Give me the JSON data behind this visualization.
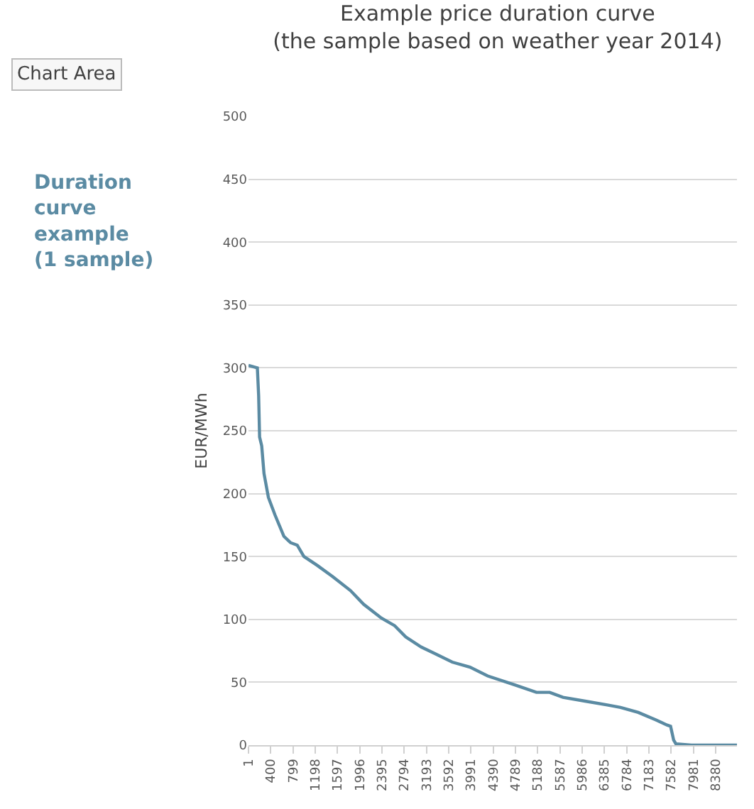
{
  "chart_data": {
    "type": "line",
    "title": "Example price duration curve\n(the sample based on weather year 2014)",
    "ylabel": "EUR/MWh",
    "annotations": [
      "Chart Area",
      "Duration\ncurve\nexample\n(1 sample)"
    ],
    "x": [
      1,
      160,
      183,
      200,
      238,
      279,
      358,
      477,
      636,
      755,
      875,
      994,
      1232,
      1510,
      1828,
      2066,
      2384,
      2622,
      2821,
      3099,
      3337,
      3655,
      3972,
      4290,
      4767,
      5164,
      5402,
      5640,
      6037,
      6434,
      6672,
      6990,
      7308,
      7506,
      7570,
      7625,
      7665,
      7943,
      8760
    ],
    "series": [
      {
        "color": "#5b8ba3",
        "values": [
          302,
          300,
          278,
          245,
          238,
          216,
          197,
          183,
          166,
          161,
          159,
          150,
          143,
          134,
          123,
          112,
          101,
          95,
          86,
          78,
          73,
          66,
          62,
          55,
          48,
          42,
          42,
          38,
          35,
          32,
          30,
          26,
          20,
          16,
          15,
          4,
          1,
          0,
          0
        ]
      }
    ],
    "xlim": [
      1,
      8760
    ],
    "xticks": [
      1,
      400,
      799,
      1198,
      1597,
      1996,
      2395,
      2794,
      3193,
      3592,
      3991,
      4390,
      4789,
      5188,
      5587,
      5986,
      6385,
      6784,
      7183,
      7582,
      7981,
      8380
    ],
    "ylim": [
      0,
      500
    ],
    "yticks": [
      0,
      50,
      100,
      150,
      200,
      250,
      300,
      350,
      400,
      450,
      500
    ],
    "grid": "y",
    "legend": false,
    "marker": "none",
    "line_style": "solid"
  }
}
